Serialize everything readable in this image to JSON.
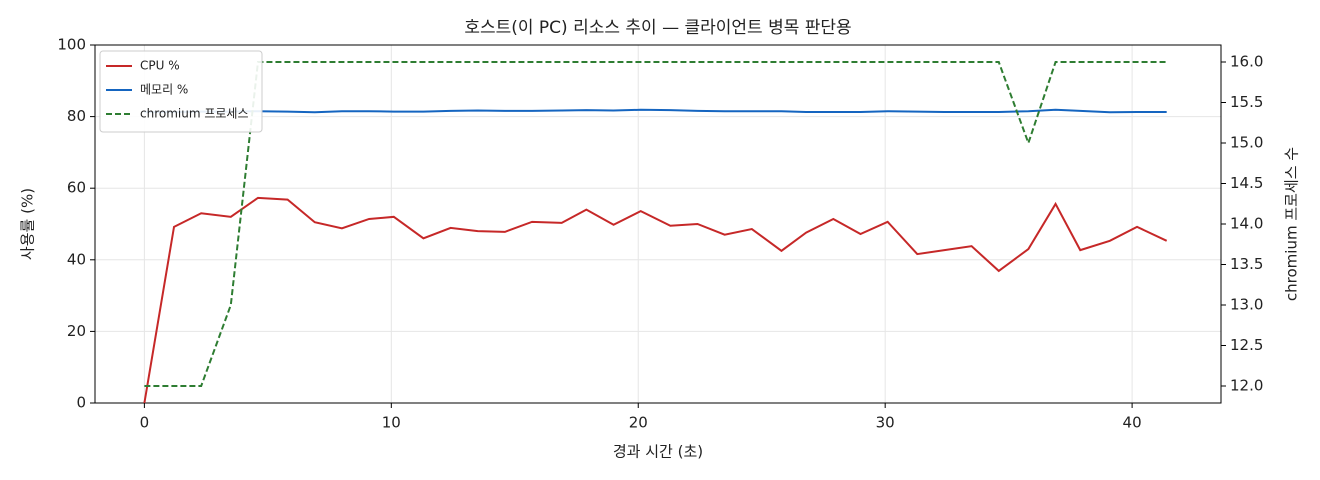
{
  "chart_data": {
    "type": "line",
    "title": "호스트(이 PC) 리소스 추이 — 클라이언트 병목 판단용",
    "xlabel": "경과 시간 (초)",
    "ylabel": "사용률 (%)",
    "y2label": "chromium 프로세스 수",
    "x": [
      0,
      1.2,
      2.3,
      3.5,
      4.6,
      5.8,
      6.9,
      8.0,
      9.1,
      10.1,
      11.3,
      12.4,
      13.5,
      14.6,
      15.7,
      16.9,
      17.9,
      19.0,
      20.1,
      21.3,
      22.4,
      23.5,
      24.6,
      25.8,
      26.8,
      27.9,
      29.0,
      30.1,
      31.3,
      32.4,
      33.5,
      34.6,
      35.8,
      36.9,
      37.9,
      39.1,
      40.2,
      41.4
    ],
    "series": [
      {
        "name": "CPU %",
        "color": "#c62828",
        "style": "solid",
        "values": [
          0,
          49.2,
          53,
          52,
          57.3,
          56.8,
          50.5,
          48.8,
          51.4,
          52,
          46,
          48.9,
          48,
          47.8,
          50.6,
          50.3,
          54,
          49.8,
          53.6,
          49.5,
          50,
          47,
          48.6,
          42.5,
          47.6,
          51.4,
          47.2,
          50.6,
          41.6,
          42.7,
          43.8,
          36.9,
          43,
          55.6,
          42.7,
          45.3,
          49.2,
          45.3
        ]
      },
      {
        "name": "메모리 %",
        "color": "#1565c0",
        "style": "solid",
        "values": [
          81.3,
          81.3,
          81.4,
          81.4,
          81.5,
          81.4,
          81.2,
          81.5,
          81.5,
          81.4,
          81.4,
          81.6,
          81.7,
          81.6,
          81.6,
          81.7,
          81.8,
          81.7,
          81.9,
          81.8,
          81.6,
          81.5,
          81.5,
          81.5,
          81.3,
          81.3,
          81.3,
          81.5,
          81.4,
          81.3,
          81.3,
          81.3,
          81.5,
          81.9,
          81.6,
          81.2,
          81.3,
          81.3
        ]
      },
      {
        "name": "chromium 프로세스",
        "color": "#2e7d32",
        "style": "dashed",
        "axis": "y2",
        "values": [
          12,
          12,
          12,
          13,
          16,
          16,
          16,
          16,
          16,
          16,
          16,
          16,
          16,
          16,
          16,
          16,
          16,
          16,
          16,
          16,
          16,
          16,
          16,
          16,
          16,
          16,
          16,
          16,
          16,
          16,
          16,
          16,
          15,
          16,
          16,
          16,
          16,
          16
        ]
      }
    ],
    "xlim": [
      -2,
      43.6
    ],
    "xticks": [
      0,
      10,
      20,
      30,
      40
    ],
    "ylim": [
      0,
      100
    ],
    "yticks": [
      0,
      20,
      40,
      60,
      80,
      100
    ],
    "y2lim": [
      11.79,
      16.21
    ],
    "y2ticks": [
      {
        "value": 12,
        "label": "12.0"
      },
      {
        "value": 12.5,
        "label": "12.5"
      },
      {
        "value": 13,
        "label": "13.0"
      },
      {
        "value": 13.5,
        "label": "13.5"
      },
      {
        "value": 14,
        "label": "14.0"
      },
      {
        "value": 14.5,
        "label": "14.5"
      },
      {
        "value": 15,
        "label": "15.0"
      },
      {
        "value": 15.5,
        "label": "15.5"
      },
      {
        "value": 16,
        "label": "16.0"
      }
    ],
    "grid": true,
    "legend": "upper-left"
  }
}
